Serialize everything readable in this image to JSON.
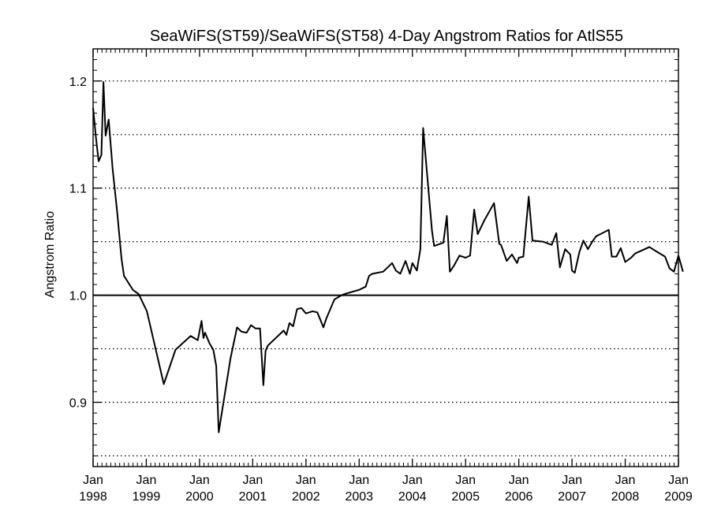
{
  "chart_data": {
    "type": "line",
    "title": "SeaWiFS(ST59)/SeaWiFS(ST58) 4-Day Angstrom Ratios for AtlS55",
    "xlabel": "",
    "ylabel": "Angstrom Ratio",
    "xlim": [
      "1998-01",
      "2009-01"
    ],
    "ylim": [
      0.84,
      1.23
    ],
    "x_ticks": [
      {
        "month": "Jan",
        "year": "1998"
      },
      {
        "month": "Jan",
        "year": "1999"
      },
      {
        "month": "Jan",
        "year": "2000"
      },
      {
        "month": "Jan",
        "year": "2001"
      },
      {
        "month": "Jan",
        "year": "2002"
      },
      {
        "month": "Jan",
        "year": "2003"
      },
      {
        "month": "Jan",
        "year": "2004"
      },
      {
        "month": "Jan",
        "year": "2005"
      },
      {
        "month": "Jan",
        "year": "2006"
      },
      {
        "month": "Jan",
        "year": "2007"
      },
      {
        "month": "Jan",
        "year": "2008"
      },
      {
        "month": "Jan",
        "year": "2009"
      }
    ],
    "y_ticks": [
      "0.9",
      "1.0",
      "1.1",
      "1.2"
    ],
    "y_tick_values": [
      0.9,
      1.0,
      1.1,
      1.2
    ],
    "dotted_gridlines_y": [
      0.85,
      0.9,
      0.95,
      1.05,
      1.1,
      1.15,
      1.2
    ],
    "reference_line_y": 1.0,
    "grid": "horizontal dotted",
    "series": [
      {
        "x": [
          "1998-01-01",
          "1998-01-20",
          "1998-02-08",
          "1998-02-27",
          "1998-03-13",
          "1998-03-28",
          "1998-04-18",
          "1998-05-15",
          "1998-06-15",
          "1998-07-15",
          "1998-08-01",
          "1998-10-01",
          "1998-11-10",
          "1999-01-05",
          "1999-05-01",
          "1999-07-20",
          "1999-11-01",
          "1999-12-20",
          "2000-01-15",
          "2000-01-28",
          "2000-02-08",
          "2000-03-10",
          "2000-04-05",
          "2000-04-25",
          "2000-05-12",
          "2000-08-01",
          "2000-09-15",
          "2000-10-15",
          "2000-11-20",
          "2000-12-20",
          "2001-01-20",
          "2001-02-20",
          "2001-03-15",
          "2001-03-30",
          "2001-04-15",
          "2001-08-01",
          "2001-08-20",
          "2001-09-10",
          "2001-10-05",
          "2001-11-01",
          "2001-12-01",
          "2002-01-01",
          "2002-02-15",
          "2002-03-20",
          "2002-05-01",
          "2002-05-20",
          "2002-07-15",
          "2002-08-20",
          "2002-09-20",
          "2003-01-01",
          "2003-02-15",
          "2003-03-10",
          "2003-04-01",
          "2003-06-15",
          "2003-08-15",
          "2003-09-10",
          "2003-10-10",
          "2003-11-15",
          "2003-12-15",
          "2004-01-01",
          "2004-02-01",
          "2004-02-25",
          "2004-03-15",
          "2004-05-15",
          "2004-05-30",
          "2004-08-01",
          "2004-08-25",
          "2004-09-15",
          "2004-10-15",
          "2004-11-20",
          "2005-01-01",
          "2005-02-01",
          "2005-03-01",
          "2005-03-25",
          "2005-05-10",
          "2005-07-15",
          "2005-08-20",
          "2005-09-01",
          "2005-10-10",
          "2005-11-15",
          "2005-12-20",
          "2006-01-01",
          "2006-02-01",
          "2006-03-10",
          "2006-04-05",
          "2006-06-15",
          "2006-08-15",
          "2006-09-15",
          "2006-10-10",
          "2006-11-15",
          "2006-12-20",
          "2007-01-01",
          "2007-01-20",
          "2007-02-20",
          "2007-03-20",
          "2007-04-20",
          "2007-05-20",
          "2007-06-15",
          "2007-09-10",
          "2007-10-01",
          "2007-11-01",
          "2007-12-01",
          "2008-01-01",
          "2008-02-10",
          "2008-03-10",
          "2008-06-15",
          "2008-08-01",
          "2008-10-01",
          "2008-11-01",
          "2008-12-01",
          "2009-01-01",
          "2009-02-01"
        ],
        "y": [
          1.175,
          1.148,
          1.125,
          1.131,
          1.199,
          1.149,
          1.164,
          1.118,
          1.078,
          1.034,
          1.018,
          1.005,
          1.001,
          0.985,
          0.917,
          0.949,
          0.962,
          0.958,
          0.976,
          0.96,
          0.965,
          0.955,
          0.949,
          0.934,
          0.872,
          0.941,
          0.97,
          0.966,
          0.965,
          0.972,
          0.969,
          0.969,
          0.916,
          0.948,
          0.953,
          0.967,
          0.963,
          0.974,
          0.971,
          0.987,
          0.988,
          0.983,
          0.985,
          0.984,
          0.97,
          0.978,
          0.996,
          0.999,
          1.001,
          1.005,
          1.008,
          1.018,
          1.02,
          1.022,
          1.03,
          1.023,
          1.02,
          1.032,
          1.02,
          1.03,
          1.023,
          1.043,
          1.156,
          1.06,
          1.046,
          1.049,
          1.074,
          1.022,
          1.028,
          1.037,
          1.035,
          1.037,
          1.08,
          1.057,
          1.07,
          1.086,
          1.048,
          1.047,
          1.032,
          1.038,
          1.03,
          1.035,
          1.036,
          1.092,
          1.051,
          1.05,
          1.047,
          1.058,
          1.026,
          1.043,
          1.038,
          1.023,
          1.021,
          1.04,
          1.051,
          1.043,
          1.05,
          1.055,
          1.061,
          1.036,
          1.036,
          1.044,
          1.031,
          1.035,
          1.039,
          1.045,
          1.041,
          1.036,
          1.025,
          1.022,
          1.037,
          1.022
        ]
      }
    ]
  }
}
